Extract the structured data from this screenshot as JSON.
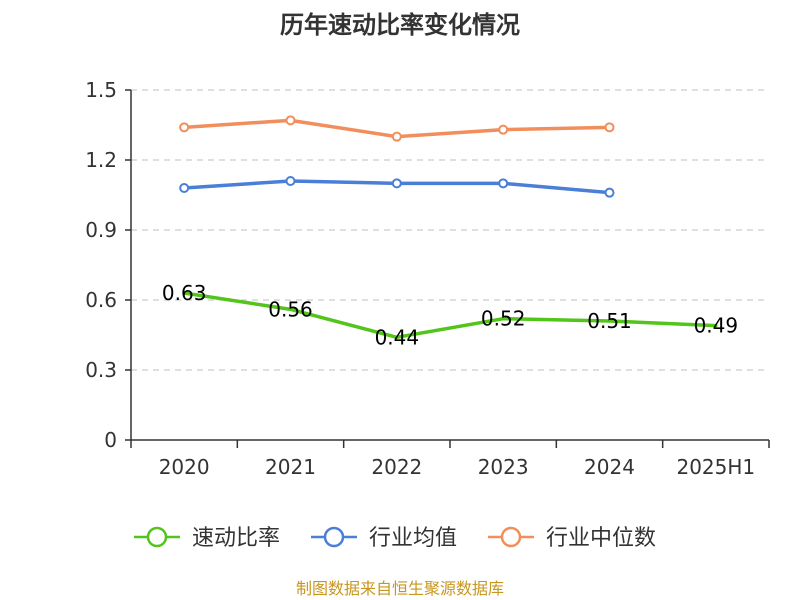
{
  "chart_data": {
    "type": "line",
    "title": "历年速动比率变化情况",
    "categories": [
      "2020",
      "2021",
      "2022",
      "2023",
      "2024",
      "2025H1"
    ],
    "ylim": [
      0,
      1.5
    ],
    "yticks": [
      0,
      0.3,
      0.6,
      0.9,
      1.2,
      1.5
    ],
    "ytick_labels": [
      "0",
      "0.3",
      "0.6",
      "0.9",
      "1.2",
      "1.5"
    ],
    "grid": true,
    "legend_position": "bottom",
    "series": [
      {
        "name": "速动比率",
        "color": "#52c41a",
        "values": [
          0.63,
          0.56,
          0.44,
          0.52,
          0.51,
          0.49
        ],
        "labels": [
          "0.63",
          "0.56",
          "0.44",
          "0.52",
          "0.51",
          "0.49"
        ],
        "show_markers": false
      },
      {
        "name": "行业均值",
        "color": "#4a7fd8",
        "values": [
          1.08,
          1.11,
          1.1,
          1.1,
          1.06,
          null
        ],
        "show_markers": true
      },
      {
        "name": "行业中位数",
        "color": "#f28e5b",
        "values": [
          1.34,
          1.37,
          1.3,
          1.33,
          1.34,
          null
        ],
        "show_markers": true
      }
    ],
    "source": "制图数据来自恒生聚源数据库"
  }
}
